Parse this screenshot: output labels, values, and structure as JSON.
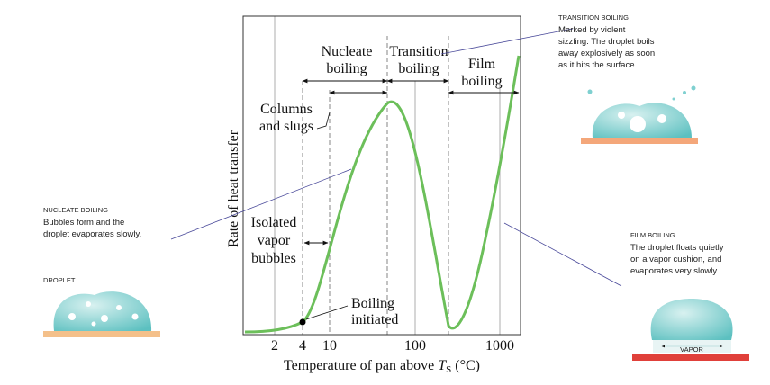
{
  "chart": {
    "y_axis_label": "Rate of heat transfer",
    "x_axis_label": [
      "Temperature of pan above ",
      "T",
      "S",
      " (°C)"
    ],
    "x_ticks": [
      "2",
      "4",
      "10",
      "100",
      "1000"
    ],
    "regions": [
      [
        "Nucleate",
        "boiling"
      ],
      [
        "Transition",
        "boiling"
      ],
      [
        "Film",
        "boiling"
      ]
    ],
    "columns_and_slugs": [
      "Columns",
      "and slugs"
    ],
    "isolated_vapor_bubbles": [
      "Isolated",
      "vapor",
      "bubbles"
    ],
    "boiling_initiated": [
      "Boiling",
      "initiated"
    ]
  },
  "callouts": [
    {
      "heading": "TRANSITION BOILING",
      "lines": [
        "Marked by violent",
        "sizzling. The droplet boils",
        "away explosively as soon",
        "as it hits the surface."
      ]
    },
    {
      "heading": "NUCLEATE BOILING",
      "lines": [
        "Bubbles form and the",
        "droplet evaporates slowly."
      ]
    },
    {
      "heading": "FILM BOILING",
      "lines": [
        "The droplet floats quietly",
        "on a vapor cushion, and",
        "evaporates very slowly."
      ]
    }
  ],
  "droplet_label": "DROPLET",
  "vapor_label": "VAPOR"
}
